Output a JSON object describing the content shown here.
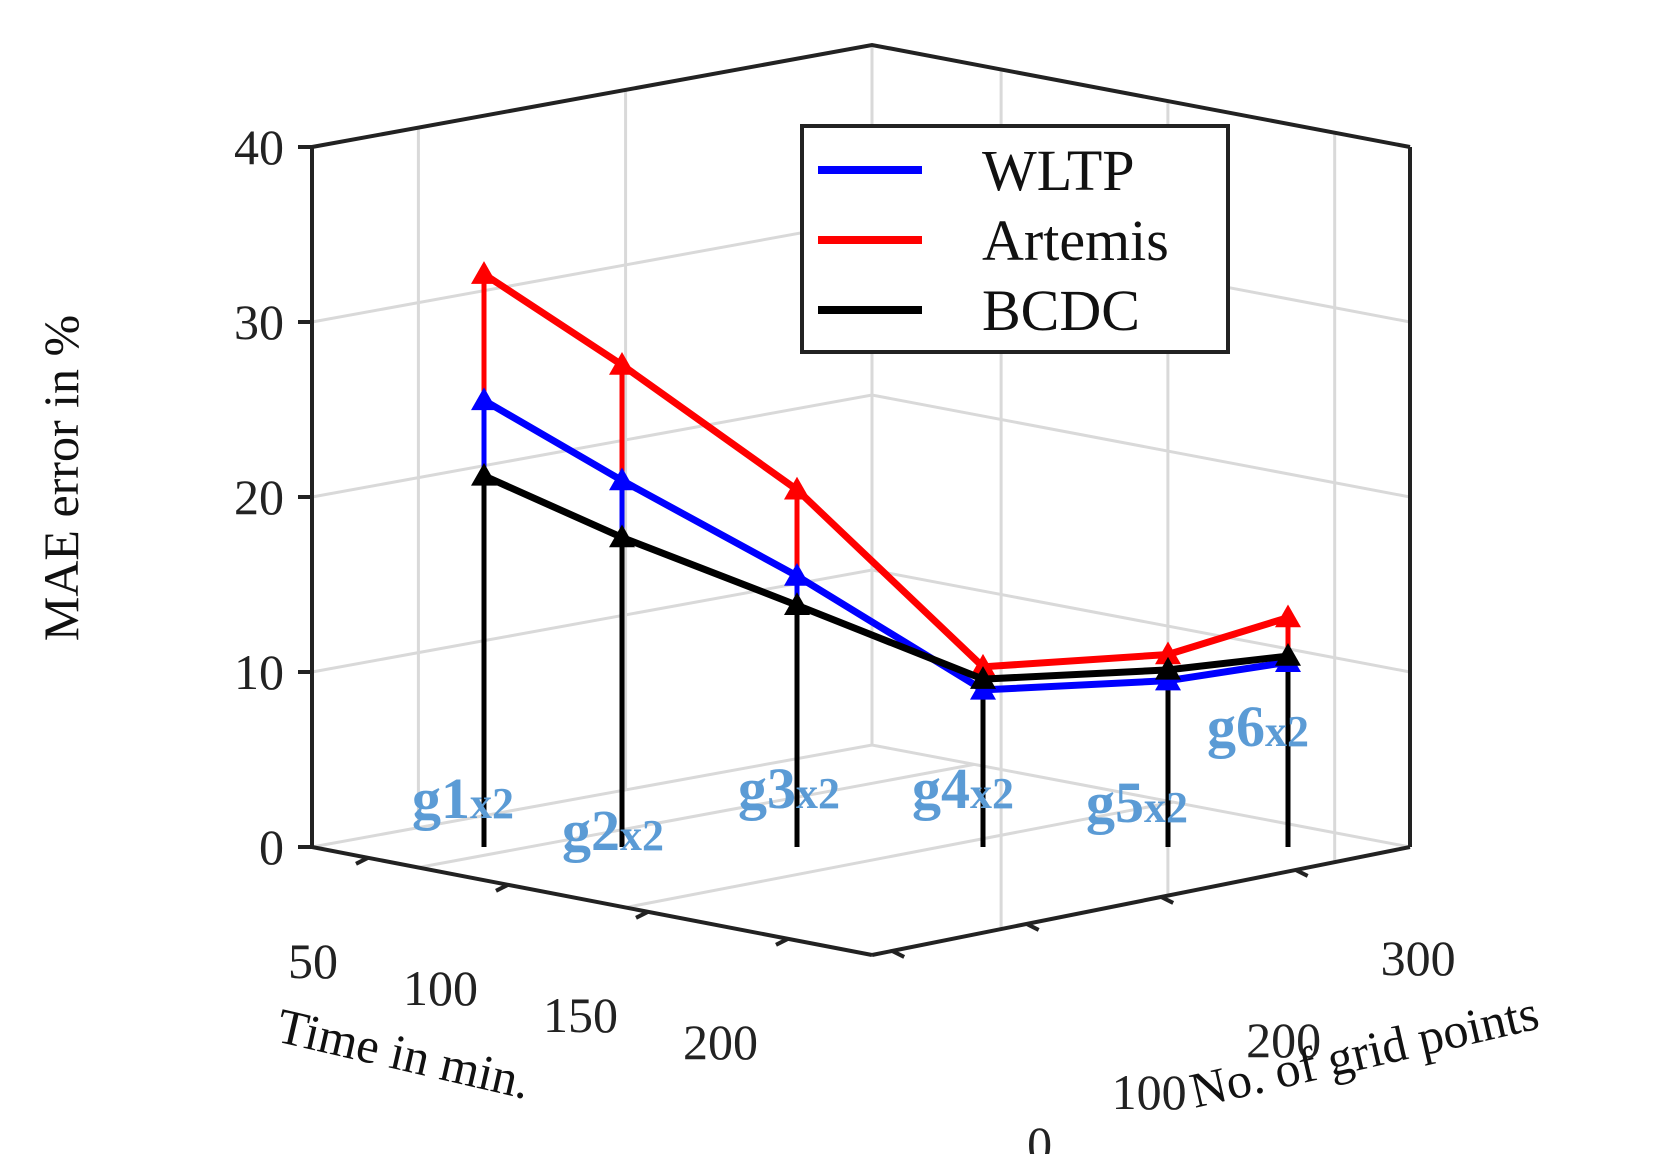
{
  "chart_data": {
    "type": "line",
    "projection": "3d",
    "zlabel": "MAE error in %",
    "xlabel": "Time in min.",
    "ylabel": "No. of grid points",
    "zticks": [
      "0",
      "10",
      "20",
      "30",
      "40"
    ],
    "xticks": [
      "50",
      "100",
      "150",
      "200"
    ],
    "yticks": [
      "0",
      "100",
      "200",
      "300"
    ],
    "zlim": [
      0,
      40
    ],
    "grid": true,
    "legend_position": "top-right",
    "categories": [
      "g1",
      "g2",
      "g3",
      "g4",
      "g5",
      "g6"
    ],
    "point_labels": [
      {
        "main": "g1",
        "sub": "x2"
      },
      {
        "main": "g2",
        "sub": "x2"
      },
      {
        "main": "g3",
        "sub": "x2"
      },
      {
        "main": "g4",
        "sub": "x2"
      },
      {
        "main": "g5",
        "sub": "x2"
      },
      {
        "main": "g6",
        "sub": "x2"
      }
    ],
    "series": [
      {
        "name": "WLTP",
        "color": "#0000ff",
        "values": [
          29,
          23.8,
          17.6,
          10.2,
          10.8,
          12
        ]
      },
      {
        "name": "Artemis",
        "color": "#ff0000",
        "values": [
          37.2,
          31.3,
          23.2,
          11.7,
          12.5,
          14.9
        ]
      },
      {
        "name": "BCDC",
        "color": "#000000",
        "values": [
          24.1,
          20.1,
          15.7,
          10.9,
          11.5,
          12.4
        ]
      }
    ]
  }
}
